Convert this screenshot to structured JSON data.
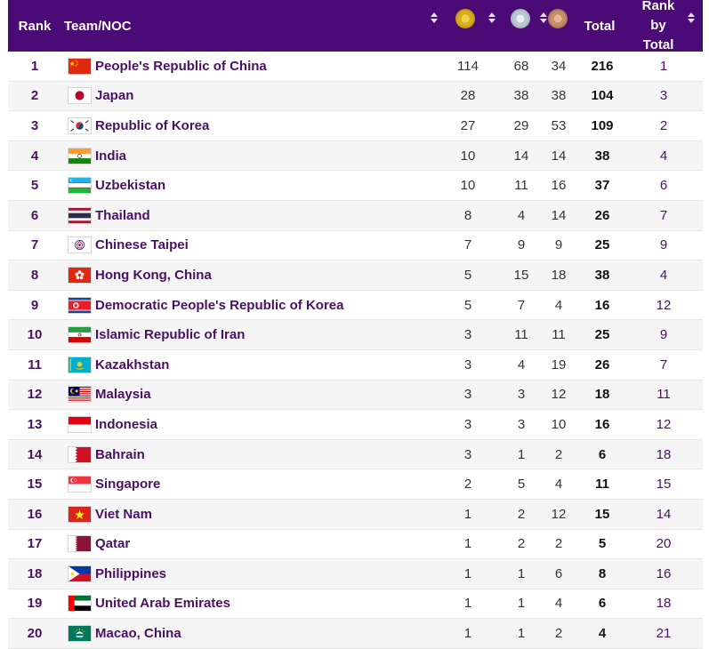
{
  "header": {
    "rank": "Rank",
    "team": "Team/NOC",
    "total": "Total",
    "rank_by_total_lines": [
      "Rank",
      "by",
      "Total"
    ],
    "medal_icons": [
      "gold-medal-icon",
      "silver-medal-icon",
      "bronze-medal-icon"
    ]
  },
  "colors": {
    "header_bg": "#4a0b76",
    "text_purple": "#4a1163",
    "row_alt": "#f5f5f5"
  },
  "rows": [
    {
      "rank": "1",
      "team": "People's Republic of China",
      "flag": "cn",
      "gold": "114",
      "silver": "68",
      "bronze": "34",
      "total": "216",
      "rank_by_total": "1"
    },
    {
      "rank": "2",
      "team": "Japan",
      "flag": "jp",
      "gold": "28",
      "silver": "38",
      "bronze": "38",
      "total": "104",
      "rank_by_total": "3"
    },
    {
      "rank": "3",
      "team": "Republic of Korea",
      "flag": "kr",
      "gold": "27",
      "silver": "29",
      "bronze": "53",
      "total": "109",
      "rank_by_total": "2"
    },
    {
      "rank": "4",
      "team": "India",
      "flag": "in",
      "gold": "10",
      "silver": "14",
      "bronze": "14",
      "total": "38",
      "rank_by_total": "4"
    },
    {
      "rank": "5",
      "team": "Uzbekistan",
      "flag": "uz",
      "gold": "10",
      "silver": "11",
      "bronze": "16",
      "total": "37",
      "rank_by_total": "6"
    },
    {
      "rank": "6",
      "team": "Thailand",
      "flag": "th",
      "gold": "8",
      "silver": "4",
      "bronze": "14",
      "total": "26",
      "rank_by_total": "7"
    },
    {
      "rank": "7",
      "team": "Chinese Taipei",
      "flag": "tpe",
      "gold": "7",
      "silver": "9",
      "bronze": "9",
      "total": "25",
      "rank_by_total": "9"
    },
    {
      "rank": "8",
      "team": "Hong Kong, China",
      "flag": "hk",
      "gold": "5",
      "silver": "15",
      "bronze": "18",
      "total": "38",
      "rank_by_total": "4"
    },
    {
      "rank": "9",
      "team": "Democratic People's Republic of Korea",
      "flag": "kp",
      "gold": "5",
      "silver": "7",
      "bronze": "4",
      "total": "16",
      "rank_by_total": "12"
    },
    {
      "rank": "10",
      "team": "Islamic Republic of Iran",
      "flag": "ir",
      "gold": "3",
      "silver": "11",
      "bronze": "11",
      "total": "25",
      "rank_by_total": "9"
    },
    {
      "rank": "11",
      "team": "Kazakhstan",
      "flag": "kz",
      "gold": "3",
      "silver": "4",
      "bronze": "19",
      "total": "26",
      "rank_by_total": "7"
    },
    {
      "rank": "12",
      "team": "Malaysia",
      "flag": "my",
      "gold": "3",
      "silver": "3",
      "bronze": "12",
      "total": "18",
      "rank_by_total": "11"
    },
    {
      "rank": "13",
      "team": "Indonesia",
      "flag": "id",
      "gold": "3",
      "silver": "3",
      "bronze": "10",
      "total": "16",
      "rank_by_total": "12"
    },
    {
      "rank": "14",
      "team": "Bahrain",
      "flag": "bh",
      "gold": "3",
      "silver": "1",
      "bronze": "2",
      "total": "6",
      "rank_by_total": "18"
    },
    {
      "rank": "15",
      "team": "Singapore",
      "flag": "sg",
      "gold": "2",
      "silver": "5",
      "bronze": "4",
      "total": "11",
      "rank_by_total": "15"
    },
    {
      "rank": "16",
      "team": "Viet Nam",
      "flag": "vn",
      "gold": "1",
      "silver": "2",
      "bronze": "12",
      "total": "15",
      "rank_by_total": "14"
    },
    {
      "rank": "17",
      "team": "Qatar",
      "flag": "qa",
      "gold": "1",
      "silver": "2",
      "bronze": "2",
      "total": "5",
      "rank_by_total": "20"
    },
    {
      "rank": "18",
      "team": "Philippines",
      "flag": "ph",
      "gold": "1",
      "silver": "1",
      "bronze": "6",
      "total": "8",
      "rank_by_total": "16"
    },
    {
      "rank": "19",
      "team": "United Arab Emirates",
      "flag": "ae",
      "gold": "1",
      "silver": "1",
      "bronze": "4",
      "total": "6",
      "rank_by_total": "18"
    },
    {
      "rank": "20",
      "team": "Macao, China",
      "flag": "mo",
      "gold": "1",
      "silver": "1",
      "bronze": "2",
      "total": "4",
      "rank_by_total": "21"
    }
  ]
}
